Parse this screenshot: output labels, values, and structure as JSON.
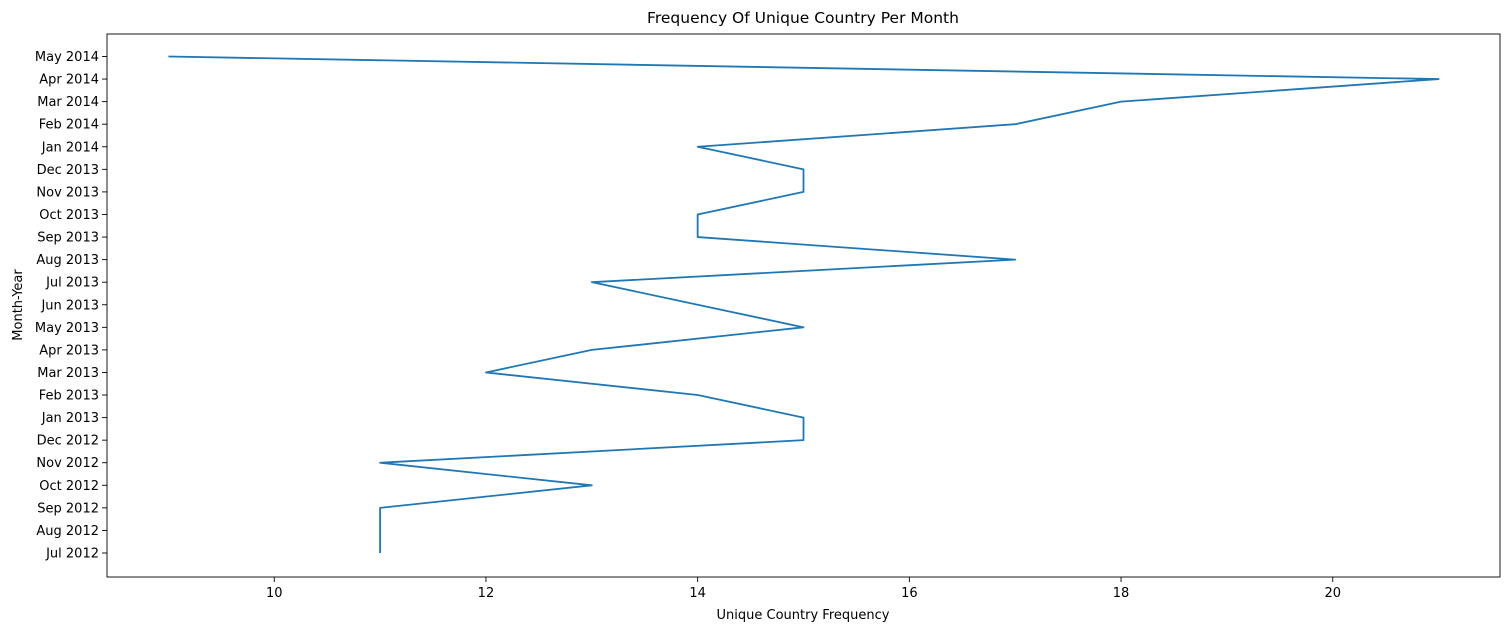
{
  "chart_data": {
    "type": "line",
    "title": "Frequency Of Unique Country Per Month",
    "xlabel": "Unique Country Frequency",
    "ylabel": "Month-Year",
    "xlim": [
      8.42,
      21.58
    ],
    "x_ticks": [
      10,
      12,
      14,
      16,
      18,
      20
    ],
    "categories": [
      "Jul 2012",
      "Aug 2012",
      "Sep 2012",
      "Oct 2012",
      "Nov 2012",
      "Dec 2012",
      "Jan 2013",
      "Feb 2013",
      "Mar 2013",
      "Apr 2013",
      "May 2013",
      "Jun 2013",
      "Jul 2013",
      "Aug 2013",
      "Sep 2013",
      "Oct 2013",
      "Nov 2013",
      "Dec 2013",
      "Jan 2014",
      "Feb 2014",
      "Mar 2014",
      "Apr 2014",
      "May 2014"
    ],
    "values": [
      11,
      11,
      11,
      13,
      11,
      15,
      15,
      14,
      12,
      13,
      15,
      null,
      13,
      17,
      14,
      14,
      15,
      15,
      14,
      17,
      18,
      21,
      9
    ],
    "grid": false,
    "legend": "none",
    "color": "#1f77b4"
  }
}
